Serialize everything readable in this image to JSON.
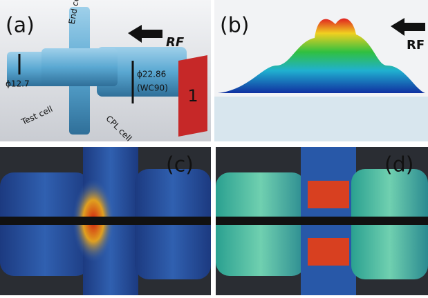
{
  "panel_a": {
    "label": "(a)",
    "end_cell": "End cell",
    "test_cell": "Test cell",
    "cpl_cell": "CPL cell",
    "diameter_small": "ϕ12.7",
    "diameter_large": "ϕ22.86",
    "waveguide": "(WC90)",
    "rf": "RF",
    "port": "1"
  },
  "panel_b": {
    "label": "(b)",
    "rf": "RF"
  },
  "panel_c": {
    "label": "(c)"
  },
  "panel_d": {
    "label": "(d)"
  }
}
